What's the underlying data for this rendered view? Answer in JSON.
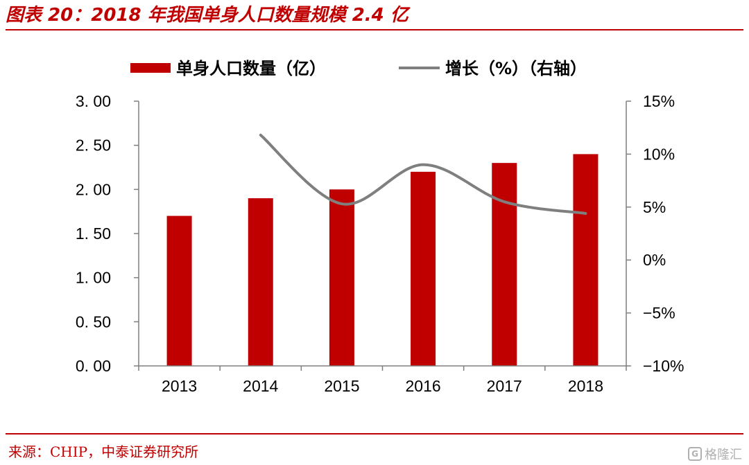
{
  "header": {
    "title": "图表 20：2018 年我国单身人口数量规模 2.4 亿"
  },
  "footer": {
    "source": "来源：CHIP，中泰证券研究所",
    "watermark": "格隆汇",
    "watermark_logo": "G"
  },
  "colors": {
    "bar": "#c00000",
    "line": "#7f7f7f",
    "accent": "#c00000"
  },
  "chart_data": {
    "type": "bar",
    "categories": [
      "2013",
      "2014",
      "2015",
      "2016",
      "2017",
      "2018"
    ],
    "series": [
      {
        "name": "单身人口数量（亿）",
        "type": "bar",
        "axis": "left",
        "values": [
          1.7,
          1.9,
          2.0,
          2.2,
          2.3,
          2.4
        ]
      },
      {
        "name": "增长（%）（右轴）",
        "type": "line",
        "axis": "right",
        "smooth": true,
        "values": [
          null,
          11.8,
          5.3,
          9.0,
          5.5,
          4.4
        ]
      }
    ],
    "left_axis": {
      "ylim": [
        0,
        3
      ],
      "ticks": [
        0,
        0.5,
        1.0,
        1.5,
        2.0,
        2.5,
        3.0
      ],
      "tick_labels": [
        "0. 00",
        "0. 50",
        "1. 00",
        "1. 50",
        "2. 00",
        "2. 50",
        "3. 00"
      ]
    },
    "right_axis": {
      "ylim": [
        -10,
        15
      ],
      "ticks": [
        -10,
        -5,
        0,
        5,
        10,
        15
      ],
      "tick_labels": [
        "−10%",
        "−5%",
        "0%",
        "5%",
        "10%",
        "15%"
      ]
    },
    "grid": false,
    "legend_position": "top"
  }
}
